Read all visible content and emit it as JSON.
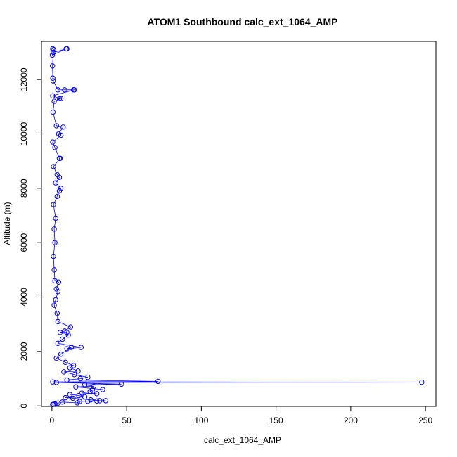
{
  "chart_data": {
    "type": "scatter",
    "title": "ATOM1 Southbound calc_ext_1064_AMP",
    "xlabel": "calc_ext_1064_AMP",
    "ylabel": "Altitude (m)",
    "xlim": [
      -7,
      257
    ],
    "ylim": [
      -20,
      13400
    ],
    "x_ticks": [
      0,
      50,
      100,
      150,
      200,
      250
    ],
    "y_ticks": [
      0,
      2000,
      4000,
      6000,
      8000,
      10000,
      12000
    ],
    "grid": false,
    "legend": "none",
    "marker": "open-circle",
    "connected_by_line": true,
    "series": [
      {
        "color": "#0000ff",
        "points": [
          {
            "x": 0.5,
            "y": 13130
          },
          {
            "x": 1.2,
            "y": 13100
          },
          {
            "x": 0.3,
            "y": 12900
          },
          {
            "x": 9.5,
            "y": 13130
          },
          {
            "x": 10.0,
            "y": 13130
          },
          {
            "x": 1.0,
            "y": 13000
          },
          {
            "x": 0.4,
            "y": 12500
          },
          {
            "x": 0.6,
            "y": 12050
          },
          {
            "x": 0.8,
            "y": 11950
          },
          {
            "x": 4.0,
            "y": 11620
          },
          {
            "x": 8.5,
            "y": 11620
          },
          {
            "x": 14.5,
            "y": 11620
          },
          {
            "x": 15.0,
            "y": 11620
          },
          {
            "x": 0.5,
            "y": 11400
          },
          {
            "x": 5.0,
            "y": 11300
          },
          {
            "x": 6.0,
            "y": 11300
          },
          {
            "x": 1.5,
            "y": 11200
          },
          {
            "x": 0.7,
            "y": 10800
          },
          {
            "x": 3.0,
            "y": 10300
          },
          {
            "x": 7.5,
            "y": 10250
          },
          {
            "x": 4.5,
            "y": 10000
          },
          {
            "x": 6.0,
            "y": 9950
          },
          {
            "x": 0.5,
            "y": 9700
          },
          {
            "x": 2.0,
            "y": 9500
          },
          {
            "x": 5.0,
            "y": 9100
          },
          {
            "x": 5.5,
            "y": 9100
          },
          {
            "x": 1.0,
            "y": 8800
          },
          {
            "x": 3.5,
            "y": 8500
          },
          {
            "x": 5.0,
            "y": 8400
          },
          {
            "x": 2.5,
            "y": 8200
          },
          {
            "x": 6.0,
            "y": 8000
          },
          {
            "x": 5.0,
            "y": 7900
          },
          {
            "x": 3.5,
            "y": 7700
          },
          {
            "x": 1.0,
            "y": 7400
          },
          {
            "x": 2.5,
            "y": 6900
          },
          {
            "x": 1.5,
            "y": 6500
          },
          {
            "x": 2.0,
            "y": 6000
          },
          {
            "x": 1.0,
            "y": 5500
          },
          {
            "x": 1.5,
            "y": 5000
          },
          {
            "x": 2.0,
            "y": 4600
          },
          {
            "x": 4.5,
            "y": 4550
          },
          {
            "x": 3.0,
            "y": 4300
          },
          {
            "x": 4.0,
            "y": 4200
          },
          {
            "x": 2.5,
            "y": 3900
          },
          {
            "x": 1.5,
            "y": 3700
          },
          {
            "x": 3.5,
            "y": 3400
          },
          {
            "x": 4.0,
            "y": 3100
          },
          {
            "x": 12.5,
            "y": 2900
          },
          {
            "x": 8.5,
            "y": 2750
          },
          {
            "x": 5.5,
            "y": 2700
          },
          {
            "x": 10.0,
            "y": 2700
          },
          {
            "x": 11.0,
            "y": 2600
          },
          {
            "x": 7.0,
            "y": 2450
          },
          {
            "x": 4.0,
            "y": 2300
          },
          {
            "x": 19.5,
            "y": 2150
          },
          {
            "x": 10.0,
            "y": 2100
          },
          {
            "x": 13.0,
            "y": 2150
          },
          {
            "x": 6.0,
            "y": 1900
          },
          {
            "x": 3.0,
            "y": 1750
          },
          {
            "x": 9.0,
            "y": 1600
          },
          {
            "x": 14.5,
            "y": 1480
          },
          {
            "x": 12.0,
            "y": 1400
          },
          {
            "x": 17.5,
            "y": 1280
          },
          {
            "x": 8.0,
            "y": 1250
          },
          {
            "x": 15.0,
            "y": 1150
          },
          {
            "x": 24.0,
            "y": 1050
          },
          {
            "x": 19.0,
            "y": 1000
          },
          {
            "x": 10.0,
            "y": 950
          },
          {
            "x": 71.0,
            "y": 900
          },
          {
            "x": 0.5,
            "y": 880
          },
          {
            "x": 247.5,
            "y": 870
          },
          {
            "x": 3.0,
            "y": 860
          },
          {
            "x": 46.5,
            "y": 800
          },
          {
            "x": 22.0,
            "y": 780
          },
          {
            "x": 28.0,
            "y": 720
          },
          {
            "x": 16.0,
            "y": 700
          },
          {
            "x": 34.0,
            "y": 600
          },
          {
            "x": 27.0,
            "y": 580
          },
          {
            "x": 25.5,
            "y": 520
          },
          {
            "x": 20.0,
            "y": 470
          },
          {
            "x": 30.0,
            "y": 450
          },
          {
            "x": 12.0,
            "y": 420
          },
          {
            "x": 18.0,
            "y": 380
          },
          {
            "x": 22.0,
            "y": 330
          },
          {
            "x": 9.0,
            "y": 300
          },
          {
            "x": 14.0,
            "y": 280
          },
          {
            "x": 26.0,
            "y": 220
          },
          {
            "x": 32.0,
            "y": 190
          },
          {
            "x": 36.0,
            "y": 190
          },
          {
            "x": 30.0,
            "y": 180
          },
          {
            "x": 24.0,
            "y": 170
          },
          {
            "x": 18.5,
            "y": 160
          },
          {
            "x": 17.0,
            "y": 110
          },
          {
            "x": 7.0,
            "y": 140
          },
          {
            "x": 4.0,
            "y": 100
          },
          {
            "x": 2.0,
            "y": 70
          },
          {
            "x": 1.0,
            "y": 60
          },
          {
            "x": 0.5,
            "y": 50
          }
        ]
      }
    ]
  }
}
